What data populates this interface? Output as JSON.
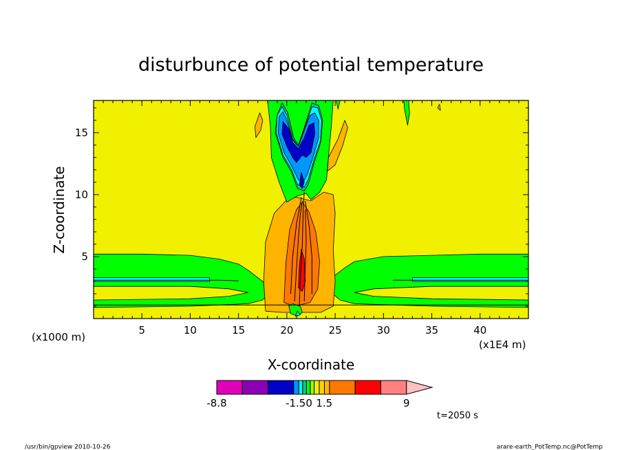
{
  "chart_data": {
    "type": "heatmap",
    "title": "disturbunce of potential temperature",
    "xlabel": "X-coordinate",
    "ylabel": "Z-coordinate",
    "x_unit": "(x1E4 m)",
    "y_unit": "(x1000 m)",
    "xlim": [
      0,
      45
    ],
    "ylim": [
      0,
      17.6
    ],
    "x_ticks": [
      5,
      10,
      15,
      20,
      25,
      30,
      35,
      40
    ],
    "y_ticks": [
      5,
      10,
      15
    ],
    "background_color": "#f0f000",
    "colorbar": {
      "labels": [
        {
          "value": "-8.8",
          "pos": 0
        },
        {
          "value": "-1.50",
          "pos": 3.9
        },
        {
          "value": "1.5",
          "pos": 5.1
        },
        {
          "value": "9",
          "pos": 9
        }
      ],
      "segments": [
        {
          "color": "#e000b8",
          "w": 1
        },
        {
          "color": "#8c00b4",
          "w": 1
        },
        {
          "color": "#0000c8",
          "w": 1
        },
        {
          "color": "#0096ff",
          "w": 0.2
        },
        {
          "color": "#00ffff",
          "w": 0.15
        },
        {
          "color": "#00c896",
          "w": 0.15
        },
        {
          "color": "#00ff00",
          "w": 0.15
        },
        {
          "color": "#a0ff00",
          "w": 0.15
        },
        {
          "color": "#f0f000",
          "w": 0.2
        },
        {
          "color": "#ffd200",
          "w": 0.2
        },
        {
          "color": "#ffb400",
          "w": 0.2
        },
        {
          "color": "#ff7800",
          "w": 1
        },
        {
          "color": "#ff0000",
          "w": 1
        },
        {
          "color": "#ff8080",
          "w": 1
        },
        {
          "color": "#ffc0c0",
          "w": 1,
          "triangle": true
        }
      ]
    },
    "contour_regions": [
      {
        "color": "#00ff00",
        "pts": [
          [
            0,
            0.9
          ],
          [
            0,
            5.2
          ],
          [
            5,
            5.2
          ],
          [
            10,
            5.1
          ],
          [
            13,
            4.8
          ],
          [
            15,
            4.4
          ],
          [
            16,
            3.9
          ],
          [
            17.5,
            3.0
          ],
          [
            18.2,
            2.1
          ],
          [
            17.5,
            1.5
          ],
          [
            16,
            1.2
          ],
          [
            10,
            1.0
          ],
          [
            0,
            0.9
          ]
        ]
      },
      {
        "color": "#00ff00",
        "pts": [
          [
            45,
            0.9
          ],
          [
            45,
            5.2
          ],
          [
            40,
            5.2
          ],
          [
            35,
            5.1
          ],
          [
            30,
            5.0
          ],
          [
            27,
            4.6
          ],
          [
            26,
            4.1
          ],
          [
            24.5,
            3.2
          ],
          [
            24.6,
            2.1
          ],
          [
            25.5,
            1.5
          ],
          [
            27,
            1.2
          ],
          [
            35,
            1.0
          ],
          [
            45,
            0.9
          ]
        ]
      },
      {
        "color": "#f0f000",
        "pts": [
          [
            0,
            1.5
          ],
          [
            0,
            2.6
          ],
          [
            10,
            2.6
          ],
          [
            14,
            2.4
          ],
          [
            16,
            2.1
          ],
          [
            14,
            1.8
          ],
          [
            10,
            1.6
          ]
        ]
      },
      {
        "color": "#f0f000",
        "pts": [
          [
            45,
            1.5
          ],
          [
            45,
            2.6
          ],
          [
            35,
            2.6
          ],
          [
            29,
            2.4
          ],
          [
            27,
            2.1
          ],
          [
            29,
            1.8
          ],
          [
            35,
            1.6
          ]
        ]
      },
      {
        "color": "#00ffff",
        "pts": [
          [
            0,
            3.0
          ],
          [
            0,
            3.3
          ],
          [
            12,
            3.3
          ],
          [
            12,
            3.0
          ]
        ]
      },
      {
        "color": "#00ffff",
        "pts": [
          [
            45,
            3.0
          ],
          [
            45,
            3.3
          ],
          [
            33,
            3.3
          ],
          [
            33,
            3.0
          ]
        ]
      },
      {
        "color": "#ffb400",
        "pts": [
          [
            17.8,
            0.6
          ],
          [
            17.6,
            3.0
          ],
          [
            17.8,
            6.2
          ],
          [
            18.7,
            8.5
          ],
          [
            20.0,
            9.6
          ],
          [
            21.0,
            9.8
          ],
          [
            22.5,
            9.5
          ],
          [
            23.8,
            10.2
          ],
          [
            24.8,
            10.0
          ],
          [
            25,
            8.5
          ],
          [
            24.8,
            5.5
          ],
          [
            25,
            3.0
          ],
          [
            24.8,
            1.0
          ],
          [
            23.5,
            0.5
          ],
          [
            19.5,
            0.5
          ]
        ]
      },
      {
        "color": "#ffb400",
        "pts": [
          [
            17.2,
            16.6
          ],
          [
            16.7,
            15.5
          ],
          [
            16.8,
            14.6
          ],
          [
            17.3,
            15.2
          ],
          [
            17.5,
            16.0
          ]
        ]
      },
      {
        "color": "#ffb400",
        "pts": [
          [
            24.3,
            13.0
          ],
          [
            25.3,
            14.5
          ],
          [
            26.0,
            16.0
          ],
          [
            26.3,
            15.4
          ],
          [
            25.8,
            14.0
          ],
          [
            25.0,
            12.4
          ],
          [
            24.2,
            11.9
          ]
        ]
      },
      {
        "color": "#ffb400",
        "pts": [
          [
            35.6,
            17.0
          ],
          [
            35.8,
            17.3
          ],
          [
            35.9,
            16.8
          ]
        ]
      },
      {
        "color": "#ff7800",
        "pts": [
          [
            19.7,
            1.3
          ],
          [
            19.9,
            4.5
          ],
          [
            20.3,
            7.2
          ],
          [
            21.0,
            8.8
          ],
          [
            21.6,
            9.4
          ],
          [
            22.3,
            8.6
          ],
          [
            23.0,
            7.0
          ],
          [
            23.4,
            4.6
          ],
          [
            23.2,
            2.4
          ],
          [
            22.4,
            1.3
          ],
          [
            20.8,
            1.0
          ]
        ]
      },
      {
        "color": "#ff0000",
        "pts": [
          [
            21.2,
            2.5
          ],
          [
            21.3,
            4.3
          ],
          [
            21.5,
            5.6
          ],
          [
            21.8,
            4.8
          ],
          [
            21.9,
            3.0
          ],
          [
            21.6,
            2.2
          ]
        ]
      },
      {
        "color": "#00ff00",
        "pts": [
          [
            18.0,
            17.6
          ],
          [
            18.3,
            15.5
          ],
          [
            18.4,
            13.0
          ],
          [
            19.2,
            11.0
          ],
          [
            20.0,
            9.4
          ],
          [
            21.1,
            9.9
          ],
          [
            22.0,
            10.1
          ],
          [
            22.5,
            9.6
          ],
          [
            23.4,
            10.2
          ],
          [
            24.1,
            11.2
          ],
          [
            24.3,
            13.0
          ],
          [
            24.6,
            15.5
          ],
          [
            24.8,
            17.6
          ]
        ]
      },
      {
        "color": "#00ff00",
        "pts": [
          [
            25.1,
            17.6
          ],
          [
            25.3,
            16.9
          ],
          [
            25.5,
            17.6
          ]
        ]
      },
      {
        "color": "#00ff00",
        "pts": [
          [
            32.1,
            17.6
          ],
          [
            32.2,
            16.8
          ],
          [
            32.5,
            15.6
          ],
          [
            32.7,
            16.6
          ],
          [
            32.6,
            17.6
          ]
        ]
      },
      {
        "color": "#00ff00",
        "pts": [
          [
            20.2,
            1.0
          ],
          [
            20.4,
            0.4
          ],
          [
            21.1,
            0.2
          ],
          [
            21.6,
            0.5
          ],
          [
            21.4,
            1.0
          ],
          [
            20.6,
            1.2
          ]
        ]
      },
      {
        "color": "#00c896",
        "pts": [
          [
            19.0,
            16.4
          ],
          [
            18.8,
            15.0
          ],
          [
            19.6,
            13.0
          ],
          [
            20.5,
            11.8
          ],
          [
            21.1,
            10.5
          ],
          [
            21.8,
            10.3
          ],
          [
            22.2,
            10.8
          ],
          [
            22.8,
            12.5
          ],
          [
            23.5,
            14.2
          ],
          [
            23.7,
            16.0
          ],
          [
            23.3,
            17.2
          ],
          [
            22.6,
            17.4
          ],
          [
            21.8,
            15.4
          ],
          [
            21.2,
            14.0
          ],
          [
            20.7,
            14.6
          ],
          [
            20.1,
            16.6
          ],
          [
            19.5,
            17.4
          ]
        ]
      },
      {
        "color": "#00ffff",
        "pts": [
          [
            19.0,
            16.4
          ],
          [
            18.9,
            15.0
          ],
          [
            19.6,
            13.2
          ],
          [
            20.5,
            12.0
          ],
          [
            21.1,
            10.8
          ],
          [
            21.8,
            10.6
          ],
          [
            22.2,
            11.2
          ],
          [
            22.8,
            12.8
          ],
          [
            23.5,
            14.4
          ],
          [
            23.6,
            16.0
          ],
          [
            23.2,
            17.0
          ],
          [
            22.6,
            17.1
          ],
          [
            21.8,
            15.3
          ],
          [
            21.2,
            13.9
          ],
          [
            20.6,
            14.5
          ],
          [
            20.0,
            16.4
          ],
          [
            19.5,
            17.1
          ]
        ]
      },
      {
        "color": "#0096ff",
        "pts": [
          [
            19.2,
            16.3
          ],
          [
            19.1,
            15.0
          ],
          [
            19.7,
            13.4
          ],
          [
            20.5,
            12.3
          ],
          [
            21.2,
            11.2
          ],
          [
            21.7,
            11.0
          ],
          [
            22.1,
            11.6
          ],
          [
            22.7,
            13.0
          ],
          [
            23.3,
            14.6
          ],
          [
            23.3,
            16.0
          ],
          [
            22.9,
            16.6
          ],
          [
            22.4,
            16.4
          ],
          [
            21.8,
            15.2
          ],
          [
            21.2,
            13.9
          ],
          [
            20.6,
            14.4
          ],
          [
            20.0,
            16.0
          ],
          [
            19.6,
            16.7
          ]
        ]
      },
      {
        "color": "#0000c8",
        "pts": [
          [
            19.6,
            15.9
          ],
          [
            19.5,
            14.9
          ],
          [
            20.0,
            13.9
          ],
          [
            20.6,
            13.0
          ],
          [
            21.0,
            12.6
          ],
          [
            21.6,
            13.2
          ],
          [
            22.0,
            13.0
          ],
          [
            22.5,
            13.4
          ],
          [
            22.9,
            14.9
          ],
          [
            22.8,
            15.8
          ],
          [
            22.3,
            15.6
          ],
          [
            21.8,
            14.6
          ],
          [
            21.2,
            13.7
          ],
          [
            20.6,
            14.2
          ],
          [
            20.2,
            15.3
          ]
        ]
      },
      {
        "color": "#0000c8",
        "pts": [
          [
            21.3,
            10.8
          ],
          [
            21.5,
            11.8
          ],
          [
            21.8,
            11.0
          ],
          [
            21.6,
            10.5
          ]
        ]
      },
      {
        "color": "#00ffff",
        "pts": [
          [
            20.9,
            0.2
          ],
          [
            21.1,
            0.6
          ],
          [
            21.4,
            0.3
          ]
        ]
      }
    ],
    "contour_lines": [
      [
        [
          0,
          1.1
        ],
        [
          45,
          1.1
        ]
      ],
      [
        [
          0,
          3.1
        ],
        [
          13,
          3.1
        ],
        [
          15,
          3.05
        ]
      ],
      [
        [
          31,
          3.1
        ],
        [
          45,
          3.1
        ]
      ],
      [
        [
          20.8,
          1.4
        ],
        [
          21.0,
          4.0
        ],
        [
          21.2,
          6.5
        ],
        [
          21.4,
          8.5
        ],
        [
          21.6,
          9.5
        ]
      ],
      [
        [
          21.8,
          1.4
        ],
        [
          21.9,
          4.0
        ],
        [
          22.0,
          6.3
        ],
        [
          21.9,
          8.8
        ]
      ],
      [
        [
          21.3,
          1.0
        ],
        [
          21.4,
          3.5
        ],
        [
          21.6,
          6.0
        ],
        [
          21.7,
          9.0
        ],
        [
          21.8,
          10.2
        ]
      ],
      [
        [
          20.4,
          2.0
        ],
        [
          20.6,
          5.0
        ],
        [
          21.0,
          7.6
        ],
        [
          21.5,
          9.8
        ]
      ],
      [
        [
          22.6,
          2.0
        ],
        [
          22.6,
          5.0
        ],
        [
          22.3,
          7.5
        ],
        [
          21.9,
          9.5
        ]
      ]
    ]
  },
  "time_label": "t=2050 s",
  "footer_left": "/usr/bin/gpview   2010-10-26",
  "footer_right": "arare-earth_PotTemp.nc@PotTemp"
}
